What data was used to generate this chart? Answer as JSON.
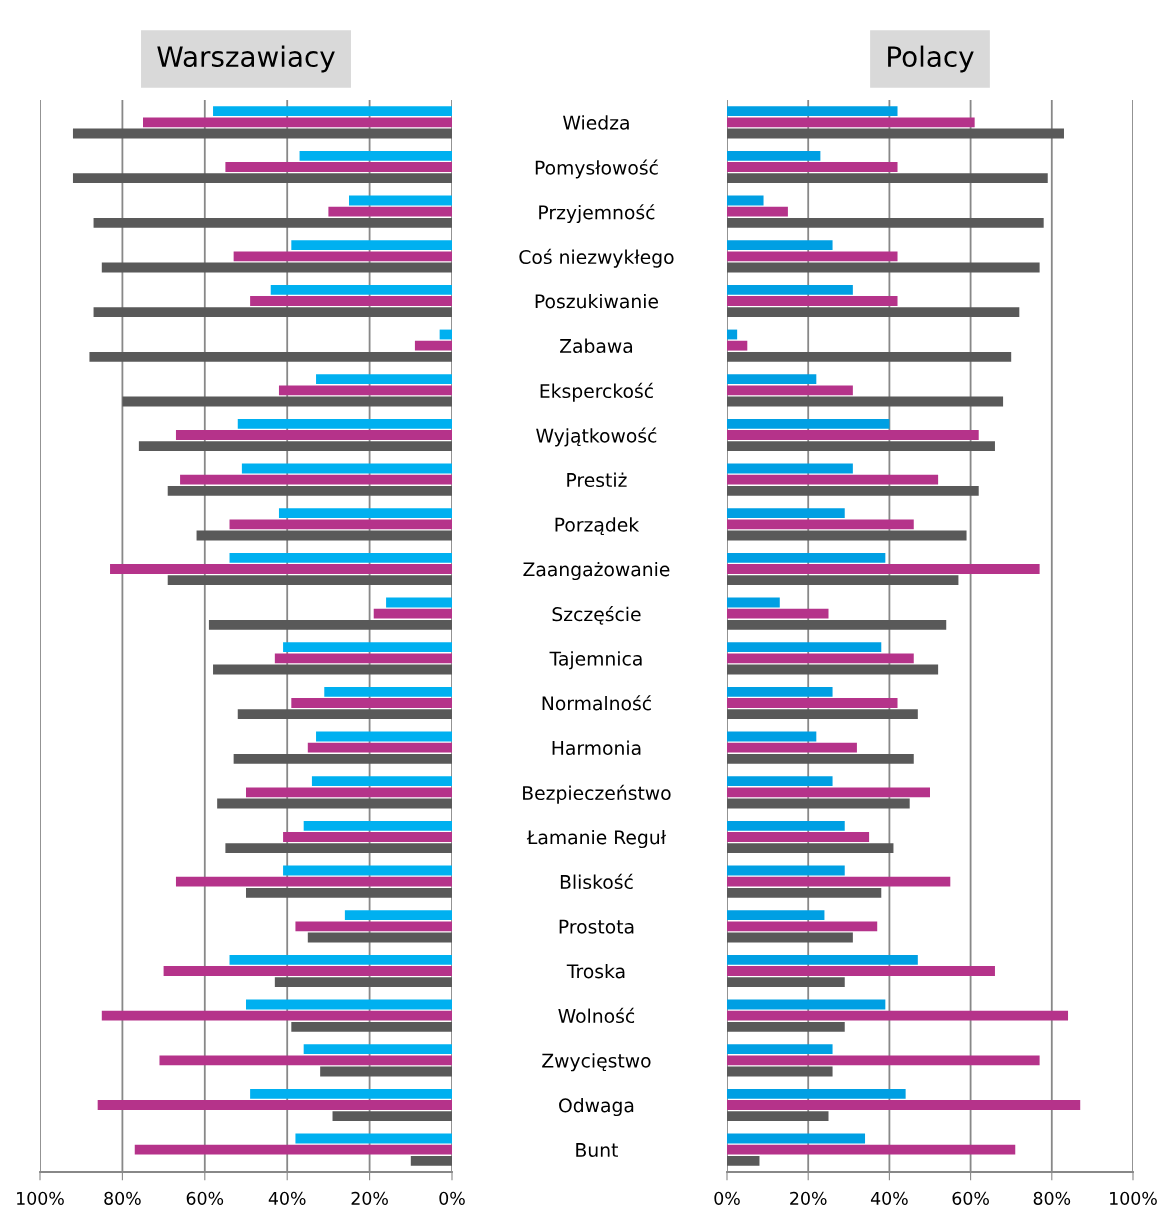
{
  "chart_data": [
    {
      "type": "bar",
      "orientation": "horizontal",
      "title": "Warszawiacy",
      "categories": [
        "Wiedza",
        "Pomysłowość",
        "Przyjemność",
        "Coś niezwykłego",
        "Poszukiwanie",
        "Zabawa",
        "Eksperckość",
        "Wyjątkowość",
        "Prestiż",
        "Porządek",
        "Zaangażowanie",
        "Szczęście",
        "Tajemnica",
        "Normalność",
        "Harmonia",
        "Bezpieczeństwo",
        "Łamanie Reguł",
        "Bliskość",
        "Prostota",
        "Troska",
        "Wolność",
        "Zwycięstwo",
        "Odwaga",
        "Bunt"
      ],
      "series": [
        {
          "color": "#00b0f0",
          "values": [
            58,
            37,
            25,
            39,
            44,
            3,
            33,
            52,
            51,
            42,
            54,
            16,
            41,
            31,
            33,
            34,
            36,
            41,
            26,
            54,
            50,
            36,
            49,
            38
          ]
        },
        {
          "color": "#b5338a",
          "values": [
            75,
            55,
            30,
            53,
            49,
            9,
            42,
            67,
            66,
            54,
            83,
            19,
            43,
            39,
            35,
            50,
            41,
            67,
            38,
            70,
            85,
            71,
            86,
            77
          ]
        },
        {
          "color": "#595959",
          "values": [
            92,
            92,
            87,
            85,
            87,
            88,
            80,
            76,
            69,
            62,
            69,
            59,
            58,
            52,
            53,
            57,
            55,
            50,
            35,
            43,
            39,
            32,
            29,
            10
          ]
        }
      ],
      "xlim": [
        100,
        0
      ],
      "xticks": [
        {
          "value": 100,
          "label": "100%"
        },
        {
          "value": 80,
          "label": "80%"
        },
        {
          "value": 60,
          "label": "60%"
        },
        {
          "value": 40,
          "label": "40%"
        },
        {
          "value": 20,
          "label": "20%"
        },
        {
          "value": 0,
          "label": "0%"
        }
      ],
      "grid": "x"
    },
    {
      "type": "bar",
      "orientation": "horizontal",
      "title": "Polacy",
      "categories": [
        null,
        null,
        null,
        null,
        null,
        null,
        null,
        null,
        null,
        null,
        null,
        null,
        null,
        null,
        null,
        null,
        null,
        null,
        null,
        null,
        null,
        null,
        null,
        null
      ],
      "series": [
        {
          "color": "#009fe3",
          "values": [
            42,
            23,
            9,
            26,
            31,
            2.5,
            22,
            40,
            31,
            29,
            39,
            13,
            38,
            26,
            22,
            26,
            29,
            29,
            24,
            47,
            39,
            26,
            44,
            34
          ]
        },
        {
          "color": "#b5338a",
          "values": [
            61,
            42,
            15,
            42,
            42,
            5,
            31,
            62,
            52,
            46,
            77,
            25,
            46,
            42,
            32,
            50,
            35,
            55,
            37,
            66,
            84,
            77,
            87,
            71
          ]
        },
        {
          "color": "#595959",
          "values": [
            83,
            79,
            78,
            77,
            72,
            70,
            68,
            66,
            62,
            59,
            57,
            54,
            52,
            47,
            46,
            45,
            41,
            38,
            31,
            29,
            29,
            26,
            25,
            8
          ]
        }
      ],
      "xlim": [
        0,
        100
      ],
      "xticks": [
        {
          "value": 0,
          "label": "0%"
        },
        {
          "value": 20,
          "label": "20%"
        },
        {
          "value": 40,
          "label": "40%"
        },
        {
          "value": 60,
          "label": "60%"
        },
        {
          "value": 80,
          "label": "80%"
        },
        {
          "value": 100,
          "label": "100%"
        }
      ],
      "grid": "x"
    }
  ]
}
